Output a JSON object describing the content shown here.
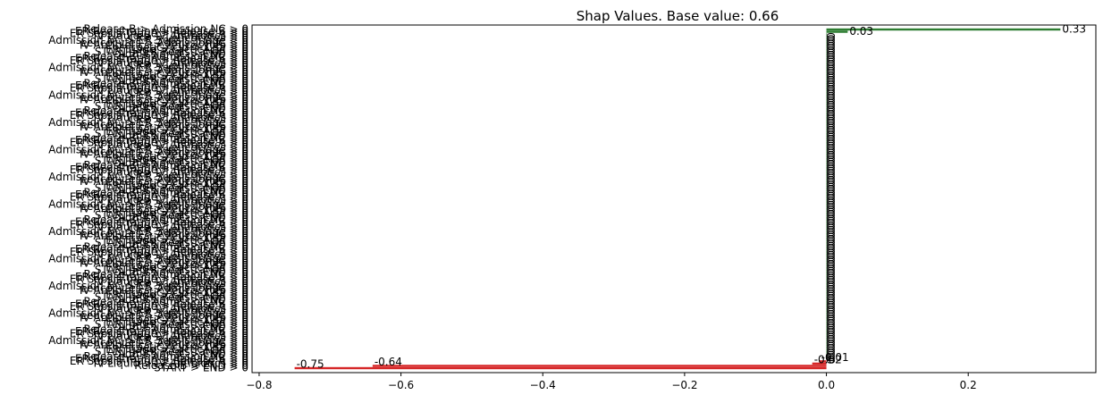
{
  "chart_data": {
    "type": "bar",
    "orientation": "horizontal",
    "title": "Shap Values. Base value: 0.66",
    "xlabel": "",
    "ylabel": "",
    "xlim": [
      -0.81,
      0.38
    ],
    "x_ticks": [
      -0.8,
      -0.6,
      -0.4,
      -0.2,
      0.0,
      0.2
    ],
    "x_tick_labels": [
      "−0.8",
      "−0.6",
      "−0.4",
      "−0.2",
      "0.0",
      "0.2"
    ],
    "grid": false,
    "n_features": 150,
    "positive_color": "#2e7d32",
    "negative_color": "#d62728",
    "feature_label_suffix": " > 0",
    "feature_names": [
      "Release B > Admission NC",
      "ER Registration > Release B",
      "ER Sepsis Triage > Release A",
      "IV Liquid > IV Antibiotics",
      "CRP > Leucocytes",
      "Admission NC > ER Sepsis Triage",
      "Leucocytes > Admission IC",
      "IV Antibiotics > Leucocytes",
      "Lactic Acid > CRP",
      "ER Triage > LacticAcid",
      "START > ER Registration",
      "Admission IC > END"
    ],
    "named_bars": [
      {
        "rank": 0,
        "feature": "Release B > Admission NC",
        "value": 0.33,
        "label": "0.33"
      },
      {
        "rank": 1,
        "feature": "ER Registration > Release B",
        "value": 0.03,
        "label": "0.03"
      },
      {
        "rank": 146,
        "feature": "ER Sepsis Triage > Release A",
        "value": -0.01,
        "label": "-0.01"
      },
      {
        "rank": 147,
        "feature": "IV Liquid > IV Antibiotics",
        "value": -0.02,
        "label": "-0.02"
      },
      {
        "rank": 148,
        "feature": "Release B > END",
        "value": -0.64,
        "label": "-0.64"
      },
      {
        "rank": 149,
        "feature": "START > END",
        "value": -0.75,
        "label": "-0.75"
      }
    ],
    "small_value_label": "0"
  }
}
